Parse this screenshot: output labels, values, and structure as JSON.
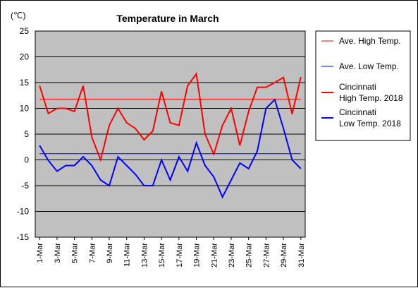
{
  "chart_data": {
    "type": "line",
    "title": "Temperature in March",
    "unit_label": "(℃)",
    "ylim": [
      -15,
      25
    ],
    "yticks": [
      25,
      20,
      15,
      10,
      5,
      0,
      -5,
      -10,
      -15
    ],
    "grid": "horizontal",
    "legend_position": "right",
    "x_tick_labels": [
      "1-Mar",
      "3-Mar",
      "5-Mar",
      "7-Mar",
      "9-Mar",
      "11-Mar",
      "13-Mar",
      "15-Mar",
      "17-Mar",
      "19-Mar",
      "21-Mar",
      "23-Mar",
      "25-Mar",
      "27-Mar",
      "29-Mar",
      "31-Mar"
    ],
    "days": [
      1,
      2,
      3,
      4,
      5,
      6,
      7,
      8,
      9,
      10,
      11,
      12,
      13,
      14,
      15,
      16,
      17,
      18,
      19,
      20,
      21,
      22,
      23,
      24,
      25,
      26,
      27,
      28,
      29,
      30,
      31
    ],
    "series": [
      {
        "name": "Ave. High Temp.",
        "color": "#ff0000",
        "style": "thin",
        "values": [
          11.8,
          11.8,
          11.8,
          11.8,
          11.8,
          11.8,
          11.8,
          11.8,
          11.8,
          11.8,
          11.8,
          11.8,
          11.8,
          11.8,
          11.8,
          11.8,
          11.8,
          11.8,
          11.8,
          11.8,
          11.8,
          11.8,
          11.8,
          11.8,
          11.8,
          11.8,
          11.8,
          11.8,
          11.8,
          11.8,
          11.8
        ]
      },
      {
        "name": "Ave. Low Temp.",
        "color": "#0000ff",
        "style": "thin",
        "values": [
          1.2,
          1.2,
          1.2,
          1.2,
          1.2,
          1.2,
          1.2,
          1.2,
          1.2,
          1.2,
          1.2,
          1.2,
          1.2,
          1.2,
          1.2,
          1.2,
          1.2,
          1.2,
          1.2,
          1.2,
          1.2,
          1.2,
          1.2,
          1.2,
          1.2,
          1.2,
          1.2,
          1.2,
          1.2,
          1.2,
          1.2
        ]
      },
      {
        "name": "Cincinnati\nHigh Temp. 2018",
        "color": "#ff0000",
        "style": "thick",
        "values": [
          14.4,
          9.0,
          10.0,
          10.0,
          9.4,
          14.4,
          4.4,
          0.0,
          6.7,
          10.0,
          7.2,
          6.1,
          3.9,
          5.6,
          13.3,
          7.2,
          6.7,
          14.4,
          16.7,
          5.0,
          1.1,
          6.7,
          10.0,
          2.8,
          9.4,
          14.1,
          14.1,
          15.0,
          16.0,
          8.9,
          16.1
        ]
      },
      {
        "name": "Cincinnati\nLow Temp. 2018",
        "color": "#0000ff",
        "style": "thick",
        "values": [
          2.8,
          -0.1,
          -2.2,
          -1.1,
          -1.1,
          0.6,
          -1.1,
          -3.9,
          -5.0,
          0.6,
          -1.1,
          -2.8,
          -5.0,
          -5.0,
          0.0,
          -3.9,
          0.6,
          -2.2,
          3.3,
          -1.1,
          -3.3,
          -7.2,
          -3.9,
          -0.6,
          -1.7,
          1.7,
          10.0,
          11.7,
          6.1,
          0.0,
          -1.7
        ]
      }
    ]
  }
}
